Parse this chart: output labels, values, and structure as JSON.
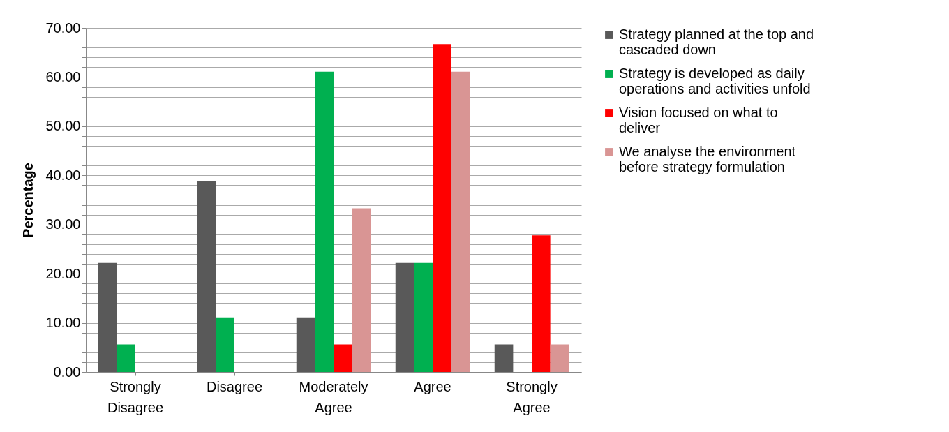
{
  "chart_data": {
    "type": "bar",
    "ylabel": "Percentage",
    "categories": [
      "Strongly Disagree",
      "Disagree",
      "Moderately Agree",
      "Agree",
      "Strongly Agree"
    ],
    "series": [
      {
        "name": "Strategy planned at the top and cascaded down",
        "color": "#595959",
        "values": [
          22.2,
          38.9,
          11.1,
          22.2,
          5.6
        ]
      },
      {
        "name": "Strategy is developed as daily operations and activities unfold",
        "color": "#00b050",
        "values": [
          5.6,
          11.1,
          61.1,
          22.2,
          0
        ]
      },
      {
        "name": "Vision focused on what to deliver",
        "color": "#ff0000",
        "values": [
          0,
          0,
          5.6,
          66.7,
          27.8
        ]
      },
      {
        "name": "We analyse the environment before strategy formulation",
        "color": "#d99594",
        "values": [
          0,
          0,
          33.3,
          61.1,
          5.6
        ]
      }
    ],
    "ylim": [
      0,
      70
    ],
    "yticks": [
      {
        "value": 0,
        "label": "0.00"
      },
      {
        "value": 2,
        "label": null
      },
      {
        "value": 4,
        "label": null
      },
      {
        "value": 6,
        "label": null
      },
      {
        "value": 8,
        "label": null
      },
      {
        "value": 10,
        "label": "10.00"
      },
      {
        "value": 12,
        "label": null
      },
      {
        "value": 14,
        "label": null
      },
      {
        "value": 16,
        "label": null
      },
      {
        "value": 18,
        "label": null
      },
      {
        "value": 20,
        "label": "20.00"
      },
      {
        "value": 22,
        "label": null
      },
      {
        "value": 24,
        "label": null
      },
      {
        "value": 26,
        "label": null
      },
      {
        "value": 28,
        "label": null
      },
      {
        "value": 30,
        "label": "30.00"
      },
      {
        "value": 32,
        "label": null
      },
      {
        "value": 34,
        "label": null
      },
      {
        "value": 36,
        "label": null
      },
      {
        "value": 38,
        "label": null
      },
      {
        "value": 40,
        "label": "40.00"
      },
      {
        "value": 42,
        "label": null
      },
      {
        "value": 44,
        "label": null
      },
      {
        "value": 46,
        "label": null
      },
      {
        "value": 48,
        "label": null
      },
      {
        "value": 50,
        "label": "50.00"
      },
      {
        "value": 52,
        "label": null
      },
      {
        "value": 54,
        "label": null
      },
      {
        "value": 56,
        "label": null
      },
      {
        "value": 58,
        "label": null
      },
      {
        "value": 60,
        "label": "60.00"
      },
      {
        "value": 62,
        "label": null
      },
      {
        "value": 64,
        "label": null
      },
      {
        "value": 66,
        "label": null
      },
      {
        "value": 68,
        "label": null
      },
      {
        "value": 70,
        "label": "70.00"
      }
    ],
    "grid": true,
    "legend": "right"
  }
}
